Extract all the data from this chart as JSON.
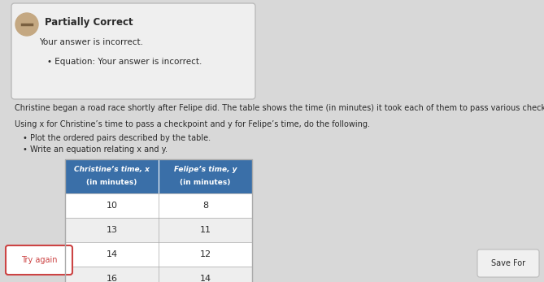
{
  "partially_correct_text": "Partially Correct",
  "your_answer_incorrect": "Your answer is incorrect.",
  "equation_incorrect": "Equation: Your answer is incorrect.",
  "main_text_1": "Christine began a road race shortly after Felipe did. The table shows the time (in minutes) it took each of them to pass various checkpoints.",
  "main_text_2": "Using x for Christine’s time to pass a checkpoint and y for Felipe’s time, do the following.",
  "bullet_1": "Plot the ordered pairs described by the table.",
  "bullet_2": "Write an equation relating x and y.",
  "col1_header_line1": "Christine’s time, x",
  "col1_header_line2": "(in minutes)",
  "col2_header_line1": "Felipe’s time, y",
  "col2_header_line2": "(in minutes)",
  "col1_values": [
    "10",
    "13",
    "14",
    "16"
  ],
  "col2_values": [
    "8",
    "11",
    "12",
    "14"
  ],
  "header_bg": "#3a6fa8",
  "header_text_color": "#ffffff",
  "table_border": "#aaaaaa",
  "page_bg": "#d8d8d8",
  "box_bg": "#efefef",
  "box_border": "#bbbbbb",
  "icon_bg": "#c4a882",
  "try_again_border": "#cc4444",
  "try_again_text": "#cc4444",
  "save_for_text": "Save For",
  "text_color": "#2a2a2a",
  "light_text": "#444444"
}
